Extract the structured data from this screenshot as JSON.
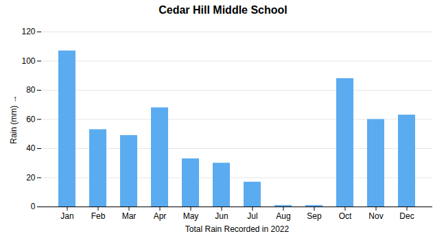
{
  "chart_data": {
    "type": "bar",
    "title": "Cedar Hill Middle School",
    "xlabel": "Total Rain Recorded in 2022",
    "ylabel": "Rain (mm)",
    "categories": [
      "Jan",
      "Feb",
      "Mar",
      "Apr",
      "May",
      "Jun",
      "Jul",
      "Aug",
      "Sep",
      "Oct",
      "Nov",
      "Dec"
    ],
    "values": [
      107,
      53,
      49,
      68,
      33,
      30,
      17,
      1,
      1,
      88,
      60,
      63
    ],
    "color": "#5aabf0",
    "ylim": [
      0,
      120
    ],
    "yticks": [
      0,
      20,
      40,
      60,
      80,
      100,
      120
    ],
    "grid": true
  }
}
